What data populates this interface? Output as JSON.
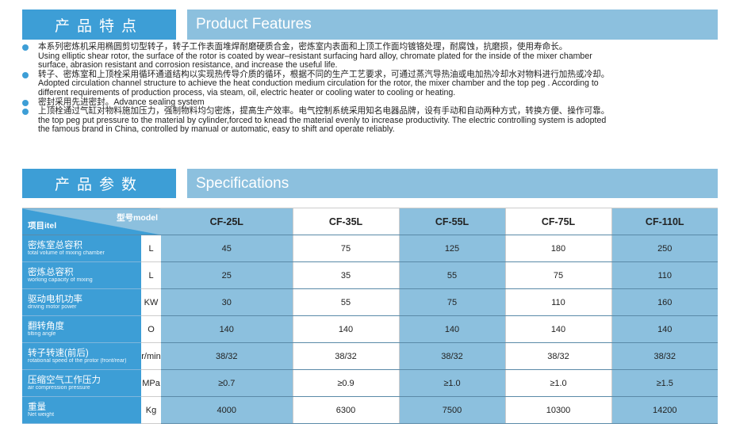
{
  "features_header": {
    "cn": "产品特点",
    "en": "Product Features"
  },
  "features": [
    {
      "lines": [
        "本系列密炼机采用椭圆剪切型转子，转子工作表面堆焊耐磨硬质合金，密炼室内表面和上顶工作面均镀铬处理，耐腐蚀，抗磨损，使用寿命长。",
        "Using elliptic shear rotor, the surface of the rotor is coated by wear–resistant surfacing hard alloy, chromate plated for the inside of the mixer chamber",
        " surface, abrasion resistant and corrosion resistance, and increase the useful life."
      ]
    },
    {
      "lines": [
        "转子、密炼室和上顶栓采用循环通道结构以实现热传导介质的循环，根据不同的生产工艺要求，可通过蒸汽导热油或电加热冷却水对物料进行加热或冷却。",
        "Adopted circulation channel structure to achieve the heat conduction medium circulation for the rotor, the mixer chamber and the top peg . According to",
        "different requirements of production process, via steam, oil, electric heater or cooling water to cooling or heating."
      ]
    },
    {
      "lines": [
        "密封采用先进密封。Advance sealing system"
      ]
    },
    {
      "lines": [
        "上顶栓通过气缸对物料施加压力，强制物料均匀密炼，提高生产效率。电气控制系统采用知名电器品牌，设有手动和自动两种方式，转换方便、操作可靠。",
        "the top peg put pressure to the material by cylinder,forced to knead the material evenly to increase productivity. The electric controlling system is adopted",
        "the famous brand in China, controlled by manual or automatic, easy to shift and operate reliably."
      ]
    }
  ],
  "specs_header": {
    "cn": "产品参数",
    "en": "Specifications"
  },
  "table": {
    "corner_model": "型号model",
    "corner_item": "项目itel",
    "models": [
      "CF-25L",
      "CF-35L",
      "CF-55L",
      "CF-75L",
      "CF-110L"
    ],
    "rows": [
      {
        "cn": "密炼室总容积",
        "en": "total volume of mixing chamber",
        "unit": "L",
        "values": [
          "45",
          "75",
          "125",
          "180",
          "250"
        ]
      },
      {
        "cn": "密炼总容积",
        "en": "working capacity of mixing",
        "unit": "L",
        "values": [
          "25",
          "35",
          "55",
          "75",
          "110"
        ]
      },
      {
        "cn": "驱动电机功率",
        "en": "driving motor power",
        "unit": "KW",
        "values": [
          "30",
          "55",
          "75",
          "110",
          "160"
        ]
      },
      {
        "cn": "翻转角度",
        "en": "tilting angle",
        "unit": "O",
        "values": [
          "140",
          "140",
          "140",
          "140",
          "140"
        ]
      },
      {
        "cn": "转子转速(前后)",
        "en": "rotational speed of the protor (front/rear)",
        "unit": "r/min",
        "values": [
          "38/32",
          "38/32",
          "38/32",
          "38/32",
          "38/32"
        ]
      },
      {
        "cn": "压缩空气工作压力",
        "en": "air compression pressure",
        "unit": "MPa",
        "values": [
          "≥0.7",
          "≥0.9",
          "≥1.0",
          "≥1.0",
          "≥1.5"
        ]
      },
      {
        "cn": "重量",
        "en": "Net weight",
        "unit": "Kg",
        "values": [
          "4000",
          "6300",
          "7500",
          "10300",
          "14200"
        ]
      }
    ]
  },
  "colors": {
    "dark_blue": "#3d9ed6",
    "light_blue": "#8cc0de"
  }
}
